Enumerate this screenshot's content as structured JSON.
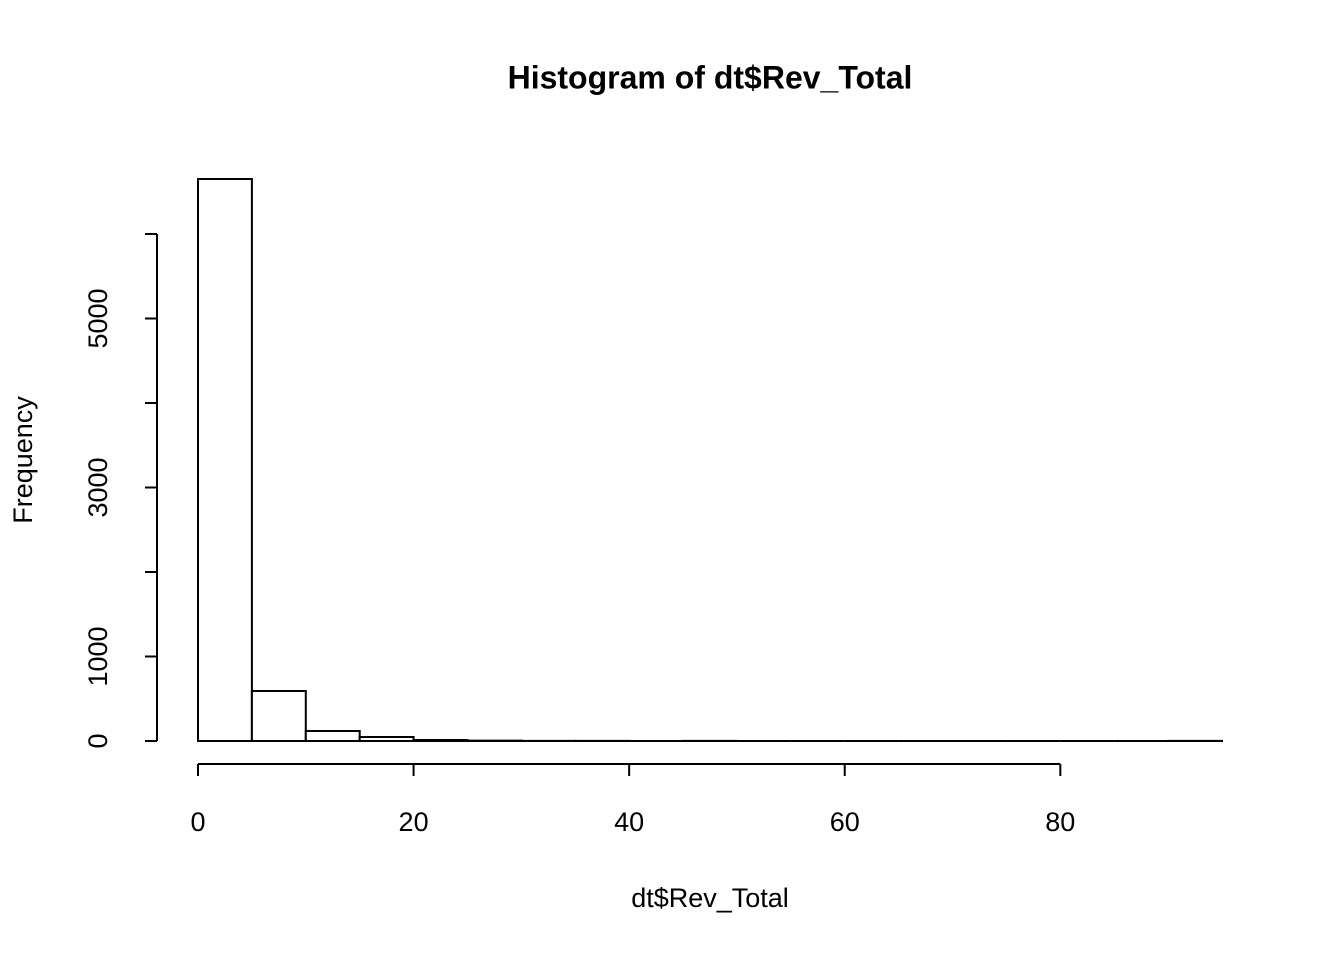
{
  "chart_data": {
    "type": "histogram",
    "title": "Histogram of dt$Rev_Total",
    "x_label": "dt$Rev_Total",
    "y_label": "Frequency",
    "bins": [
      0,
      5,
      10,
      15,
      20,
      25,
      30,
      35,
      40,
      45,
      50,
      55,
      60,
      65,
      70,
      75,
      80,
      85,
      90,
      95
    ],
    "counts": [
      6651,
      592,
      118,
      47,
      12,
      4,
      2,
      1,
      0,
      1,
      0,
      0,
      0,
      0,
      0,
      0,
      0,
      0,
      1
    ],
    "color": "#ffffff",
    "xlim": [
      0,
      95
    ],
    "xticks": [
      0,
      20,
      40,
      60,
      80
    ],
    "ylim": [
      0,
      6651
    ],
    "yticks": [
      0,
      1000,
      {
        "value": 2000,
        "label": null
      },
      3000,
      {
        "value": 4000,
        "label": null
      },
      5000,
      {
        "value": 6000,
        "label": null
      }
    ],
    "grid": false
  }
}
